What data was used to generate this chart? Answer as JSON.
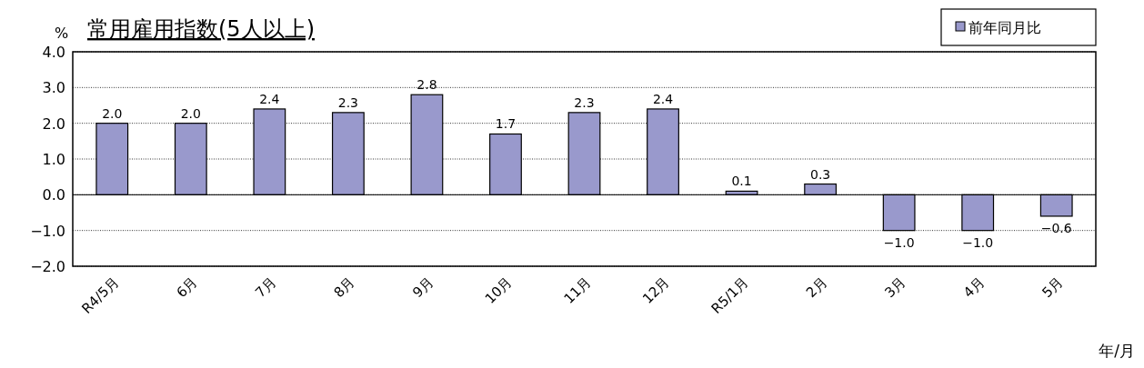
{
  "chart_data": {
    "type": "bar",
    "title": "常用雇用指数(5人以上)",
    "ylabel": "%",
    "xlabel": "年/月",
    "categories": [
      "R4/5月",
      "6月",
      "7月",
      "8月",
      "9月",
      "10月",
      "11月",
      "12月",
      "R5/1月",
      "2月",
      "3月",
      "4月",
      "5月"
    ],
    "series": [
      {
        "name": "前年同月比",
        "color": "#9999cc",
        "values": [
          2.0,
          2.0,
          2.4,
          2.3,
          2.8,
          1.7,
          2.3,
          2.4,
          0.1,
          0.3,
          -1.0,
          -1.0,
          -0.6
        ],
        "value_labels": [
          "2.0",
          "2.0",
          "2.4",
          "2.3",
          "2.8",
          "1.7",
          "2.3",
          "2.4",
          "0.1",
          "0.3",
          "−1.0",
          "−1.0",
          "−0.6"
        ]
      }
    ],
    "ylim": [
      -2,
      4
    ],
    "yticks": [
      {
        "value": -2,
        "label": "−2.0"
      },
      {
        "value": -1,
        "label": "−1.0"
      },
      {
        "value": 0,
        "label": "0.0"
      },
      {
        "value": 1,
        "label": "1.0"
      },
      {
        "value": 2,
        "label": "2.0"
      },
      {
        "value": 3,
        "label": "3.0"
      },
      {
        "value": 4,
        "label": "4.0"
      }
    ],
    "grid": "y",
    "legend": "top right"
  }
}
